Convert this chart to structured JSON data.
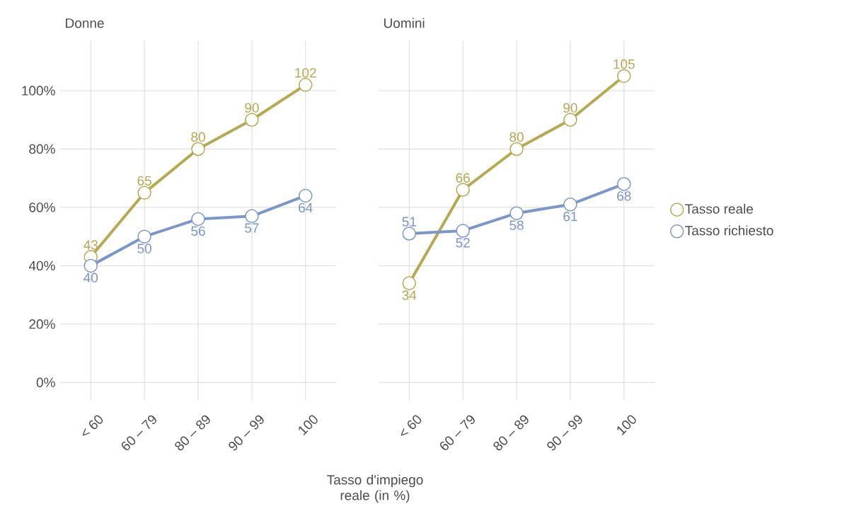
{
  "chart_data": [
    {
      "type": "line",
      "title": "Donne",
      "xlabel": "Tasso d'impiego reale (in %)",
      "categories": [
        "< 60",
        "60 – 79",
        "80 – 89",
        "90 – 99",
        "100"
      ],
      "series": [
        {
          "color": "#b5a952",
          "values": [
            43,
            65,
            80,
            90,
            102
          ]
        },
        {
          "color": "#7b96c9",
          "values": [
            40,
            50,
            56,
            57,
            64
          ]
        }
      ],
      "ylim": [
        -6,
        117
      ],
      "yticks": [
        {
          "value": 0,
          "label": "0%"
        },
        {
          "value": 20,
          "label": "20%"
        },
        {
          "value": 40,
          "label": "40%"
        },
        {
          "value": 60,
          "label": "60%"
        },
        {
          "value": 80,
          "label": "80%"
        },
        {
          "value": 100,
          "label": "100%"
        }
      ],
      "grid": true,
      "marker": "circle",
      "data_labels": true
    },
    {
      "type": "line",
      "title": "Uomini",
      "categories": [
        "< 60",
        "60 – 79",
        "80 – 89",
        "90 – 99",
        "100"
      ],
      "series": [
        {
          "name": "Tasso reale",
          "color": "#b5a952",
          "values": [
            34,
            66,
            80,
            90,
            105
          ]
        },
        {
          "name": "Tasso richiesto",
          "color": "#7b96c9",
          "values": [
            51,
            52,
            58,
            61,
            68
          ]
        }
      ],
      "ylim": [
        -6,
        117
      ],
      "yticks": [
        {
          "value": 0,
          "label": null
        },
        {
          "value": 20,
          "label": null
        },
        {
          "value": 40,
          "label": null
        },
        {
          "value": 60,
          "label": null
        },
        {
          "value": 80,
          "label": null
        },
        {
          "value": 100,
          "label": null
        }
      ],
      "grid": true,
      "legend": "right",
      "marker": "circle",
      "data_labels": true
    }
  ]
}
